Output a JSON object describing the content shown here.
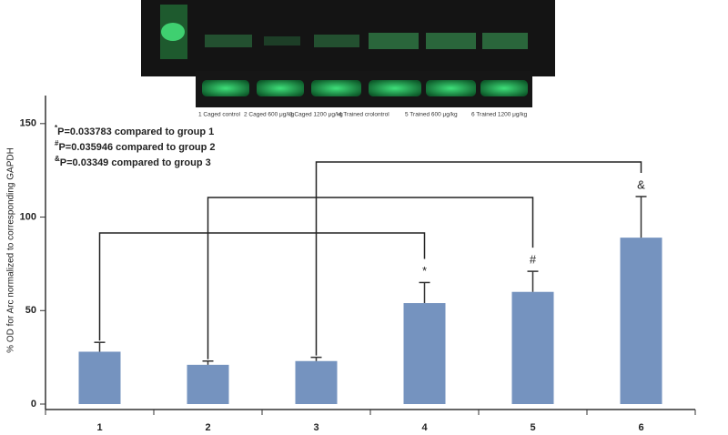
{
  "chart_data": {
    "type": "bar",
    "ylabel": "% OD for Arc normalized to corresponding GAPDH",
    "categories": [
      "1",
      "2",
      "3",
      "4",
      "5",
      "6"
    ],
    "values": [
      28,
      21,
      23,
      54,
      60,
      89
    ],
    "errors": [
      5,
      2,
      2,
      11,
      11,
      22
    ],
    "significance_labels": [
      null,
      null,
      null,
      "*",
      "#",
      "&"
    ],
    "color": "#7593bf",
    "ylim": [
      0,
      165
    ],
    "yticks": [
      0,
      50,
      100,
      150
    ],
    "annotations": [
      {
        "symbol": "*",
        "text": "P=0.033783 compared to group 1"
      },
      {
        "symbol": "#",
        "text": "P=0.035946 compared to group 2"
      },
      {
        "symbol": "&",
        "text": "P=0.03349   compared to group 3"
      }
    ],
    "blot_labels": [
      "1 Caged control",
      "2 Caged 600 μg/kg",
      "3 Caged 1200 μg/kg",
      "4 Trained crolontrol",
      "5 Trained 600 μg/kg",
      "6 Trained 1200 μg/kg"
    ]
  }
}
